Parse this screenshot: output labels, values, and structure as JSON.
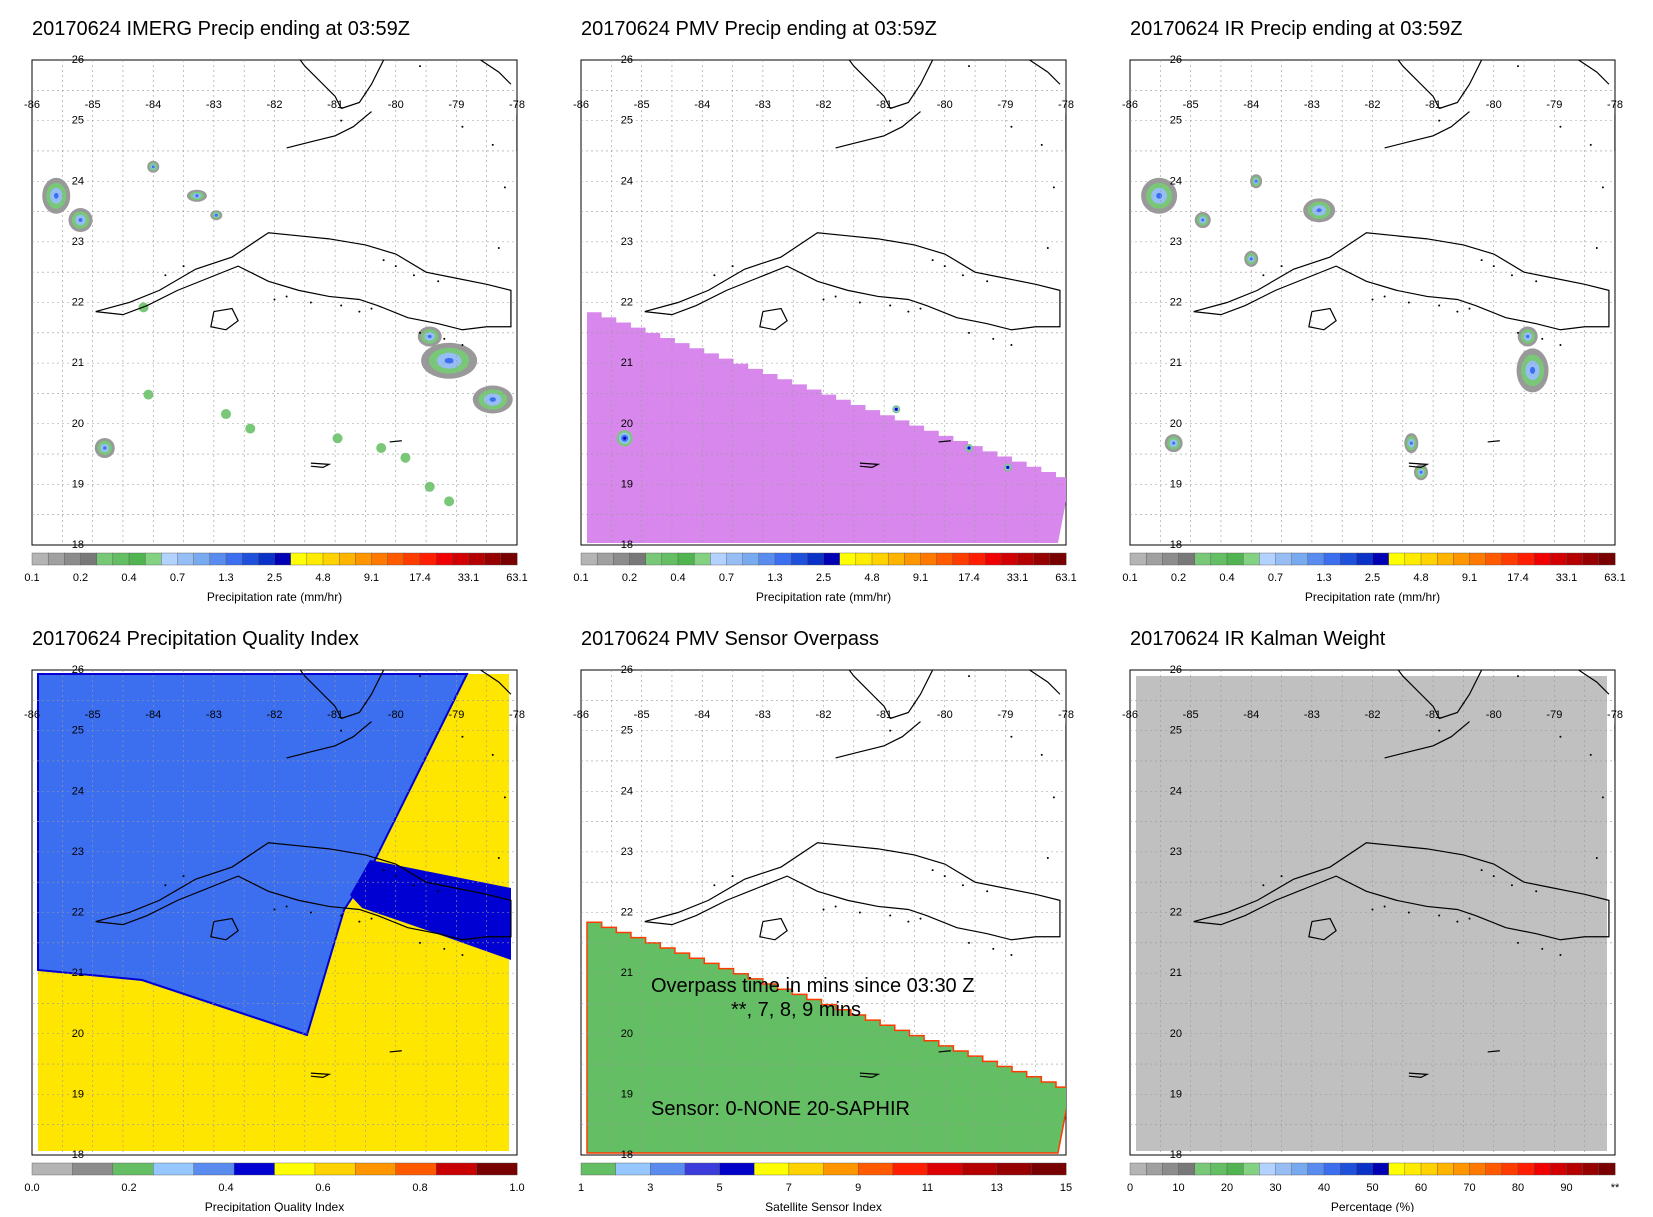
{
  "panels": [
    {
      "title": "20170624 IMERG Precip ending at 03:59Z",
      "colorbar": {
        "title": "Precipitation rate (mm/hr)",
        "labels": [
          "0.1",
          "0.2",
          "0.4",
          "0.7",
          "1.3",
          "2.5",
          "4.8",
          "9.1",
          "17.4",
          "33.1",
          "63.1"
        ],
        "colors": [
          "#b4b4b4",
          "#a0a0a0",
          "#8c8c8c",
          "#787878",
          "#78c878",
          "#64be64",
          "#50b450",
          "#82d282",
          "#b4d2ff",
          "#96bef5",
          "#78aaf0",
          "#5a8cf0",
          "#3c6ef0",
          "#1e50dc",
          "#0a32c8",
          "#0000b4",
          "#ffff00",
          "#ffeb00",
          "#ffd200",
          "#ffb400",
          "#ff9600",
          "#ff7800",
          "#ff5a00",
          "#ff3c00",
          "#ff1e00",
          "#f00000",
          "#d20000",
          "#b40000",
          "#960000",
          "#780000"
        ]
      }
    },
    {
      "title": "20170624 PMV Precip ending at 03:59Z",
      "colorbar": {
        "title": "Precipitation rate (mm/hr)",
        "labels": [
          "0.1",
          "0.2",
          "0.4",
          "0.7",
          "1.3",
          "2.5",
          "4.8",
          "9.1",
          "17.4",
          "33.1",
          "63.1"
        ],
        "colors": [
          "#b4b4b4",
          "#a0a0a0",
          "#8c8c8c",
          "#787878",
          "#78c878",
          "#64be64",
          "#50b450",
          "#82d282",
          "#b4d2ff",
          "#96bef5",
          "#78aaf0",
          "#5a8cf0",
          "#3c6ef0",
          "#1e50dc",
          "#0a32c8",
          "#0000b4",
          "#ffff00",
          "#ffeb00",
          "#ffd200",
          "#ffb400",
          "#ff9600",
          "#ff7800",
          "#ff5a00",
          "#ff3c00",
          "#ff1e00",
          "#f00000",
          "#d20000",
          "#b40000",
          "#960000",
          "#780000"
        ]
      }
    },
    {
      "title": "20170624 IR Precip ending at 03:59Z",
      "colorbar": {
        "title": "Precipitation rate (mm/hr)",
        "labels": [
          "0.1",
          "0.2",
          "0.4",
          "0.7",
          "1.3",
          "2.5",
          "4.8",
          "9.1",
          "17.4",
          "33.1",
          "63.1"
        ],
        "colors": [
          "#b4b4b4",
          "#a0a0a0",
          "#8c8c8c",
          "#787878",
          "#78c878",
          "#64be64",
          "#50b450",
          "#82d282",
          "#b4d2ff",
          "#96bef5",
          "#78aaf0",
          "#5a8cf0",
          "#3c6ef0",
          "#1e50dc",
          "#0a32c8",
          "#0000b4",
          "#ffff00",
          "#ffeb00",
          "#ffd200",
          "#ffb400",
          "#ff9600",
          "#ff7800",
          "#ff5a00",
          "#ff3c00",
          "#ff1e00",
          "#f00000",
          "#d20000",
          "#b40000",
          "#960000",
          "#780000"
        ]
      }
    },
    {
      "title": "20170624 Precipitation Quality Index",
      "colorbar": {
        "title": "Precipitation Quality Index",
        "labels": [
          "0.0",
          "0.2",
          "0.4",
          "0.6",
          "0.8",
          "1.0"
        ],
        "colors": [
          "#b4b4b4",
          "#8c8c8c",
          "#64be64",
          "#96c8ff",
          "#5a8cf0",
          "#0000d2",
          "#ffff00",
          "#ffd200",
          "#ff9600",
          "#ff5a00",
          "#c80000",
          "#780000"
        ]
      }
    },
    {
      "title": "20170624 PMV Sensor Overpass",
      "colorbar": {
        "title": "Satellite Sensor Index",
        "labels": [
          "1",
          "3",
          "5",
          "7",
          "9",
          "11",
          "13",
          "15"
        ],
        "colors": [
          "#64be64",
          "#96c8ff",
          "#5a8cf0",
          "#3c3cdc",
          "#0000c8",
          "#ffff00",
          "#ffd200",
          "#ff9600",
          "#ff5a00",
          "#ff1e00",
          "#dc0000",
          "#b40000",
          "#960000",
          "#780000"
        ]
      },
      "annotations": {
        "line1": "Overpass time in mins since 03:30 Z",
        "line2": "**, 7, 8, 9 mins",
        "line3": "Sensor:   0-NONE 20-SAPHIR"
      }
    },
    {
      "title": "20170624 IR Kalman Weight",
      "colorbar": {
        "title": "Percentage (%)",
        "labels": [
          "0",
          "10",
          "20",
          "30",
          "40",
          "50",
          "60",
          "70",
          "80",
          "90",
          "**"
        ],
        "colors": [
          "#b4b4b4",
          "#a0a0a0",
          "#8c8c8c",
          "#787878",
          "#78c878",
          "#64be64",
          "#50b450",
          "#82d282",
          "#b4d2ff",
          "#96bef5",
          "#78aaf0",
          "#5a8cf0",
          "#3c6ef0",
          "#1e50dc",
          "#0a32c8",
          "#0000b4",
          "#ffff00",
          "#ffeb00",
          "#ffd200",
          "#ffb400",
          "#ff9600",
          "#ff7800",
          "#ff5a00",
          "#ff3c00",
          "#ff1e00",
          "#f00000",
          "#d20000",
          "#b40000",
          "#960000",
          "#780000"
        ]
      }
    }
  ],
  "map": {
    "lon_labels": [
      "-86",
      "-85",
      "-84",
      "-83",
      "-82",
      "-81",
      "-80",
      "-79",
      "-78"
    ],
    "lat_labels": [
      "26",
      "25",
      "24",
      "23",
      "22",
      "21",
      "20",
      "19",
      "18"
    ],
    "lon_range": [
      -86,
      -78
    ],
    "lat_range": [
      18,
      26
    ]
  }
}
